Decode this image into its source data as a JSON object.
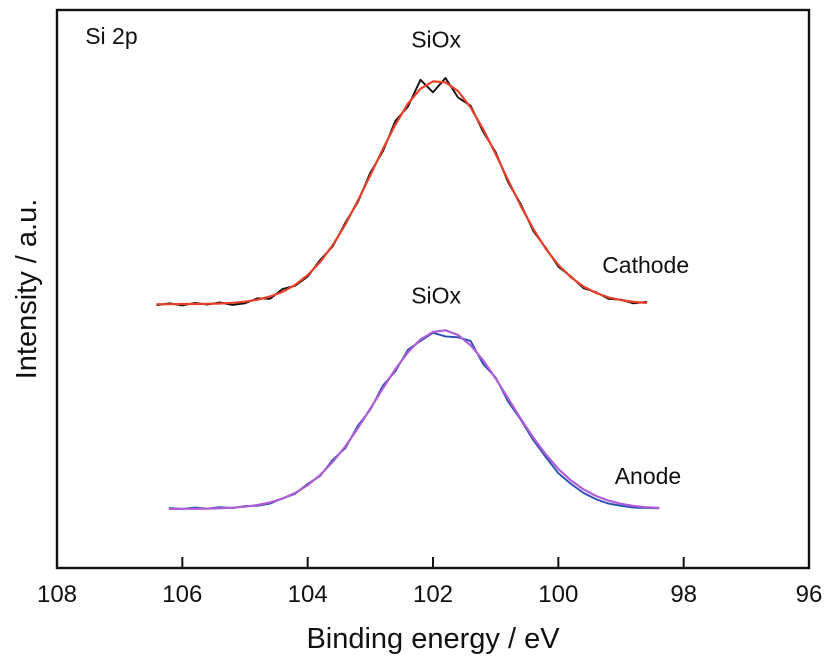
{
  "chart_data": {
    "type": "line",
    "title": "",
    "panel_label": "Si 2p",
    "xlabel": "Binding energy / eV",
    "ylabel": "Intensity / a.u.",
    "xlim": [
      108,
      96
    ],
    "x_reversed": true,
    "ylim": [
      -0.33,
      2.79
    ],
    "y_ticks_visible": false,
    "x_ticks": [
      108,
      106,
      104,
      102,
      100,
      98,
      96
    ],
    "x_tick_labels": [
      "108",
      "106",
      "104",
      "102",
      "100",
      "98",
      "96"
    ],
    "grid": false,
    "legend": "none",
    "annotations": [
      {
        "text": "Si 2p",
        "x": 107.55,
        "y": 2.6,
        "anchor": "start"
      },
      {
        "text": "SiOx",
        "x": 101.95,
        "y": 2.58,
        "anchor": "middle"
      },
      {
        "text": "Cathode",
        "x": 99.3,
        "y": 1.32,
        "anchor": "start"
      },
      {
        "text": "SiOx",
        "x": 101.95,
        "y": 1.15,
        "anchor": "middle"
      },
      {
        "text": "Anode",
        "x": 99.1,
        "y": 0.14,
        "anchor": "start"
      }
    ],
    "series": [
      {
        "name": "Cathode (measured)",
        "color": "#111111",
        "x_start": 106.4,
        "x_step": -0.2,
        "values": [
          1.14,
          1.15,
          1.138,
          1.152,
          1.143,
          1.155,
          1.141,
          1.15,
          1.178,
          1.175,
          1.23,
          1.248,
          1.3,
          1.392,
          1.468,
          1.6,
          1.715,
          1.88,
          2.0,
          2.17,
          2.25,
          2.4,
          2.33,
          2.41,
          2.3,
          2.255,
          2.11,
          1.995,
          1.826,
          1.705,
          1.555,
          1.46,
          1.355,
          1.3,
          1.235,
          1.212,
          1.175,
          1.17,
          1.15,
          1.158
        ]
      },
      {
        "name": "Cathode (fit)",
        "color": "#e8402a",
        "x_start": 106.4,
        "x_step": -0.2,
        "values": [
          1.145,
          1.145,
          1.146,
          1.146,
          1.147,
          1.149,
          1.153,
          1.159,
          1.17,
          1.188,
          1.214,
          1.253,
          1.308,
          1.381,
          1.475,
          1.59,
          1.723,
          1.866,
          2.013,
          2.15,
          2.266,
          2.35,
          2.391,
          2.386,
          2.336,
          2.245,
          2.124,
          1.984,
          1.838,
          1.695,
          1.566,
          1.455,
          1.365,
          1.296,
          1.244,
          1.208,
          1.183,
          1.168,
          1.158,
          1.152
        ]
      },
      {
        "name": "Anode (measured)",
        "color": "#2a4fb5",
        "x_start": 106.2,
        "x_step": -0.2,
        "values": [
          0.005,
          0.0,
          0.008,
          0.002,
          0.01,
          0.005,
          0.016,
          0.018,
          0.03,
          0.06,
          0.085,
          0.14,
          0.185,
          0.275,
          0.34,
          0.465,
          0.555,
          0.69,
          0.77,
          0.89,
          0.94,
          0.985,
          0.965,
          0.96,
          0.94,
          0.81,
          0.735,
          0.6,
          0.5,
          0.385,
          0.29,
          0.2,
          0.14,
          0.09,
          0.055,
          0.03,
          0.018,
          0.008,
          0.006,
          0.004
        ]
      },
      {
        "name": "Anode (fit)",
        "color": "#b05ed6",
        "x_start": 106.2,
        "x_step": -0.2,
        "values": [
          0.0,
          0.001,
          0.001,
          0.002,
          0.004,
          0.007,
          0.013,
          0.022,
          0.037,
          0.058,
          0.09,
          0.133,
          0.19,
          0.263,
          0.35,
          0.451,
          0.561,
          0.674,
          0.782,
          0.876,
          0.948,
          0.99,
          0.999,
          0.973,
          0.915,
          0.832,
          0.729,
          0.618,
          0.505,
          0.399,
          0.305,
          0.224,
          0.16,
          0.11,
          0.073,
          0.047,
          0.029,
          0.017,
          0.01,
          0.006
        ]
      }
    ]
  }
}
